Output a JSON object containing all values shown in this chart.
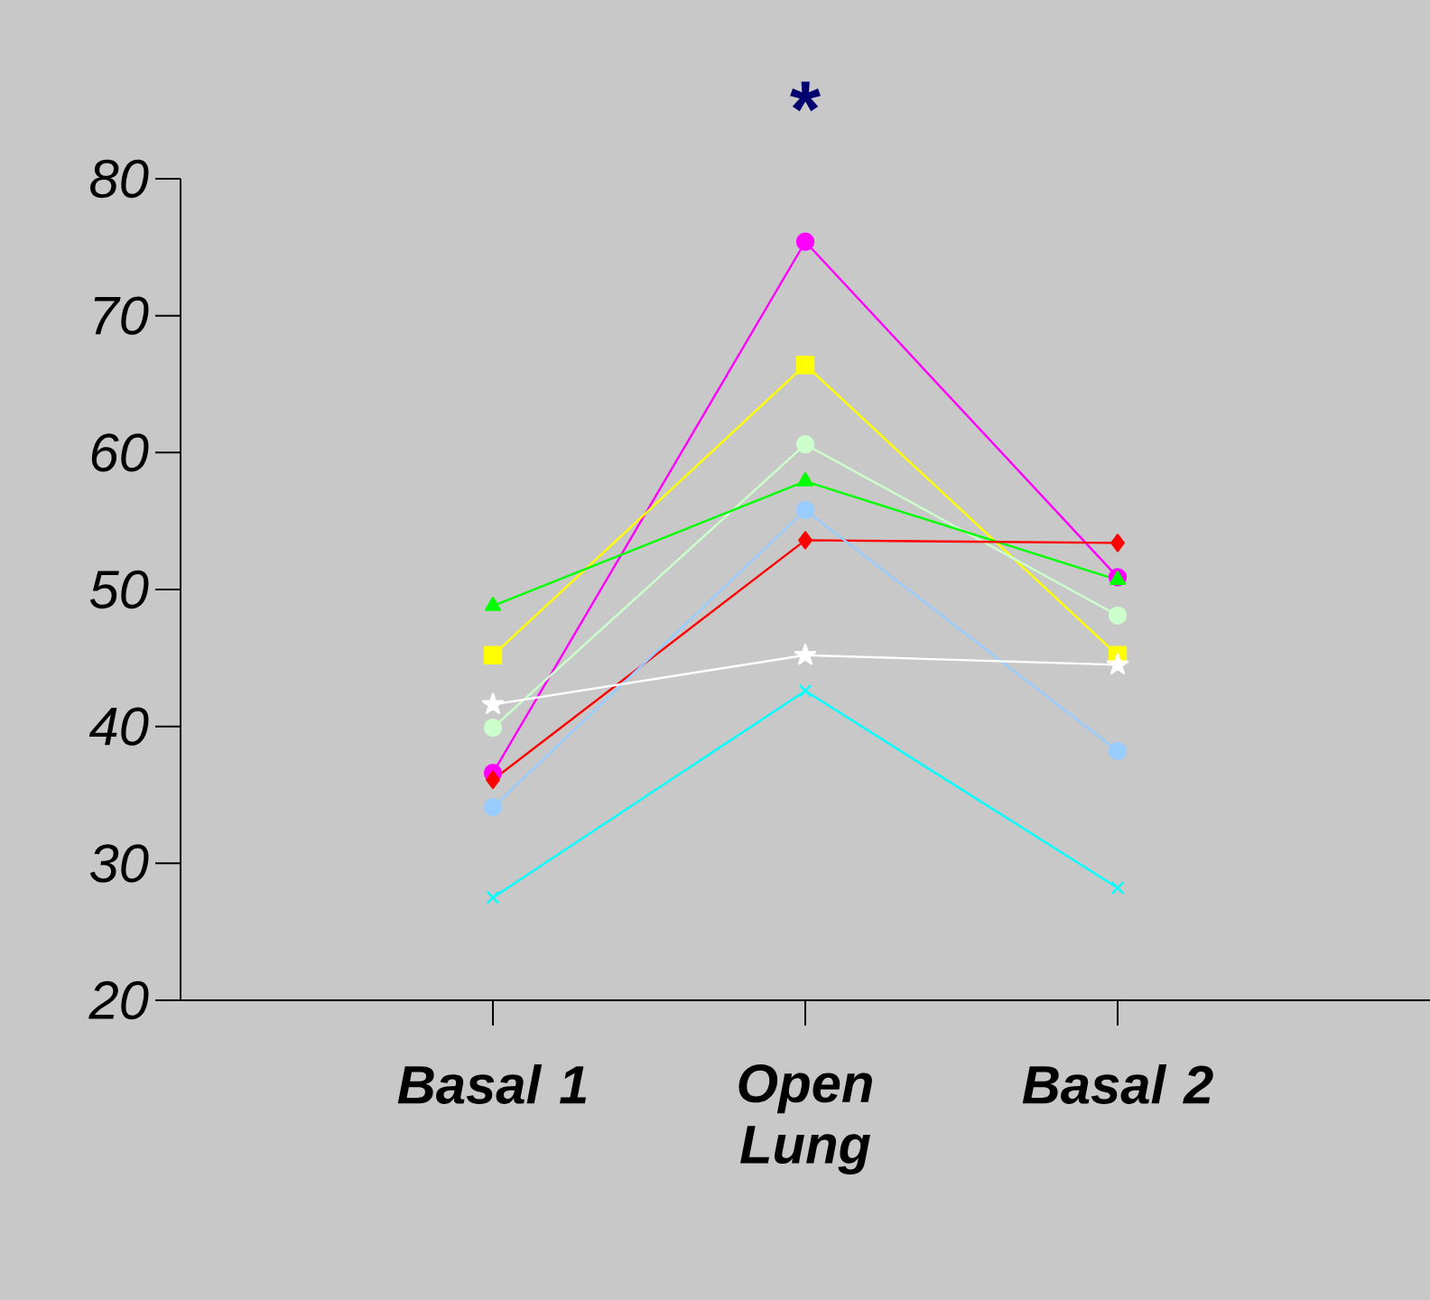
{
  "chart_data": {
    "type": "line",
    "categories": [
      "Basal 1",
      "Open Lung",
      "Basal 2"
    ],
    "ylim": [
      20,
      80
    ],
    "yticks": [
      20,
      30,
      40,
      50,
      60,
      70,
      80
    ],
    "grid": false,
    "annotations": [
      "*"
    ],
    "series": [
      {
        "color": "#ff00ff",
        "marker": "circle",
        "values": [
          36.6,
          75.4,
          50.9
        ]
      },
      {
        "color": "#ffff00",
        "marker": "square",
        "values": [
          45.2,
          66.4,
          45.2
        ]
      },
      {
        "color": "#ccffcc",
        "marker": "circle",
        "values": [
          39.9,
          60.6,
          48.1
        ]
      },
      {
        "color": "#00ff00",
        "marker": "triangle",
        "values": [
          48.8,
          57.9,
          50.7
        ]
      },
      {
        "color": "#ff0000",
        "marker": "diamond",
        "values": [
          36.1,
          53.6,
          53.4
        ]
      },
      {
        "color": "#99ccff",
        "marker": "circle",
        "values": [
          34.1,
          55.8,
          38.2
        ]
      },
      {
        "color": "#ffffff",
        "marker": "star",
        "values": [
          41.6,
          45.2,
          44.5
        ]
      },
      {
        "color": "#00ffff",
        "marker": "cross",
        "values": [
          27.5,
          42.6,
          28.2
        ]
      }
    ]
  }
}
